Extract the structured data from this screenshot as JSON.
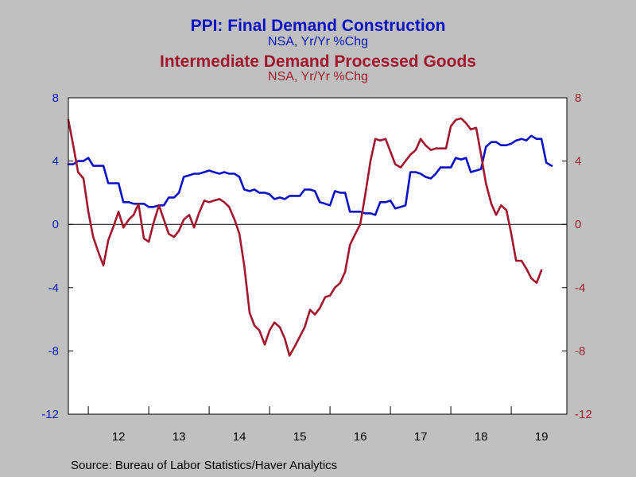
{
  "titles": {
    "title1": "PPI: Final Demand Construction",
    "subtitle1": "NSA, Yr/Yr %Chg",
    "title2": "Intermediate Demand Processed Goods",
    "subtitle2": "NSA, Yr/Yr %Chg"
  },
  "source": "Source:  Bureau of Labor Statistics/Haver Analytics",
  "colors": {
    "background": "#c0c0c0",
    "plot_background": "#ffffff",
    "series_construction": "#0b11c6",
    "series_processed_goods": "#a31630",
    "axis": "#000000"
  },
  "chart_data": {
    "type": "line",
    "x_unit": "year",
    "xlim": [
      2011.67,
      2019.92
    ],
    "x_tick_labels": [
      "12",
      "13",
      "14",
      "15",
      "16",
      "17",
      "18",
      "19"
    ],
    "left_axis": {
      "ylim": [
        -12,
        8
      ],
      "ticks": [
        8,
        4,
        0,
        -4,
        -8,
        -12
      ]
    },
    "right_axis": {
      "ylim": [
        -12,
        8
      ],
      "ticks": [
        8,
        4,
        0,
        -4,
        -8,
        -12
      ]
    },
    "zero_line": true,
    "grid": false,
    "series": [
      {
        "name": "PPI: Final Demand Construction",
        "axis": "left",
        "x": [
          2011.67,
          2011.75,
          2011.83,
          2011.92,
          2012.0,
          2012.08,
          2012.17,
          2012.25,
          2012.33,
          2012.42,
          2012.5,
          2012.58,
          2012.67,
          2012.75,
          2012.83,
          2012.92,
          2013.0,
          2013.08,
          2013.17,
          2013.25,
          2013.33,
          2013.42,
          2013.5,
          2013.58,
          2013.67,
          2013.75,
          2013.83,
          2013.92,
          2014.0,
          2014.08,
          2014.17,
          2014.25,
          2014.33,
          2014.42,
          2014.5,
          2014.58,
          2014.67,
          2014.75,
          2014.83,
          2014.92,
          2015.0,
          2015.08,
          2015.17,
          2015.25,
          2015.33,
          2015.42,
          2015.5,
          2015.58,
          2015.67,
          2015.75,
          2015.83,
          2015.92,
          2016.0,
          2016.08,
          2016.17,
          2016.25,
          2016.33,
          2016.42,
          2016.5,
          2016.58,
          2016.67,
          2016.75,
          2016.83,
          2016.92,
          2017.0,
          2017.08,
          2017.17,
          2017.25,
          2017.33,
          2017.42,
          2017.5,
          2017.58,
          2017.67,
          2017.75,
          2017.83,
          2017.92,
          2018.0,
          2018.08,
          2018.17,
          2018.25,
          2018.33,
          2018.42,
          2018.5,
          2018.58,
          2018.67,
          2018.75,
          2018.83,
          2018.92,
          2019.0,
          2019.08,
          2019.17,
          2019.25,
          2019.33,
          2019.42,
          2019.5,
          2019.58,
          2019.67,
          2019.75,
          2019.83,
          2019.92
        ],
        "values": [
          3.8,
          3.8,
          4.0,
          4.0,
          4.2,
          3.7,
          3.7,
          3.7,
          2.6,
          2.6,
          2.6,
          1.4,
          1.4,
          1.3,
          1.3,
          1.3,
          1.1,
          1.1,
          1.2,
          1.2,
          1.7,
          1.7,
          2.0,
          3.0,
          3.1,
          3.2,
          3.2,
          3.3,
          3.4,
          3.3,
          3.2,
          3.3,
          3.2,
          3.2,
          3.0,
          2.2,
          2.1,
          2.2,
          2.0,
          2.0,
          1.9,
          1.6,
          1.7,
          1.6,
          1.8,
          1.8,
          1.8,
          2.2,
          2.2,
          2.1,
          1.4,
          1.3,
          1.2,
          2.1,
          2.0,
          2.0,
          0.8,
          0.8,
          0.8,
          0.7,
          0.7,
          0.6,
          1.4,
          1.4,
          1.5,
          1.0,
          1.1,
          1.2,
          3.3,
          3.3,
          3.2,
          3.0,
          2.9,
          3.2,
          3.6,
          3.6,
          3.6,
          4.2,
          4.1,
          4.2,
          3.3,
          3.4,
          3.5,
          4.9,
          5.2,
          5.2,
          5.0,
          5.0,
          5.1,
          5.3,
          5.4,
          5.3,
          5.6,
          5.4,
          5.4,
          3.9,
          3.7,
          null,
          null,
          null
        ]
      },
      {
        "name": "Intermediate Demand Processed Goods",
        "axis": "right",
        "x": [
          2011.67,
          2011.75,
          2011.83,
          2011.92,
          2012.0,
          2012.08,
          2012.17,
          2012.25,
          2012.33,
          2012.42,
          2012.5,
          2012.58,
          2012.67,
          2012.75,
          2012.83,
          2012.92,
          2013.0,
          2013.08,
          2013.17,
          2013.25,
          2013.33,
          2013.42,
          2013.5,
          2013.58,
          2013.67,
          2013.75,
          2013.83,
          2013.92,
          2014.0,
          2014.08,
          2014.17,
          2014.25,
          2014.33,
          2014.42,
          2014.5,
          2014.58,
          2014.67,
          2014.75,
          2014.83,
          2014.92,
          2015.0,
          2015.08,
          2015.17,
          2015.25,
          2015.33,
          2015.42,
          2015.5,
          2015.58,
          2015.67,
          2015.75,
          2015.83,
          2015.92,
          2016.0,
          2016.08,
          2016.17,
          2016.25,
          2016.33,
          2016.42,
          2016.5,
          2016.58,
          2016.67,
          2016.75,
          2016.83,
          2016.92,
          2017.0,
          2017.08,
          2017.17,
          2017.25,
          2017.33,
          2017.42,
          2017.5,
          2017.58,
          2017.67,
          2017.75,
          2017.83,
          2017.92,
          2018.0,
          2018.08,
          2018.17,
          2018.25,
          2018.33,
          2018.42,
          2018.5,
          2018.58,
          2018.67,
          2018.75,
          2018.83,
          2018.92,
          2019.0,
          2019.08,
          2019.17,
          2019.25,
          2019.33,
          2019.42,
          2019.5,
          2019.58,
          2019.67,
          2019.75,
          2019.83,
          2019.92
        ],
        "values": [
          6.6,
          5.0,
          3.3,
          2.9,
          0.8,
          -0.8,
          -1.8,
          -2.6,
          -1.0,
          -0.1,
          0.8,
          -0.2,
          0.3,
          0.6,
          1.3,
          -0.9,
          -1.1,
          0.1,
          1.2,
          0.3,
          -0.6,
          -0.8,
          -0.4,
          0.3,
          0.6,
          -0.2,
          0.7,
          1.5,
          1.4,
          1.5,
          1.6,
          1.4,
          1.1,
          0.3,
          -0.6,
          -2.6,
          -5.6,
          -6.4,
          -6.7,
          -7.6,
          -6.7,
          -6.2,
          -6.5,
          -7.2,
          -8.3,
          -7.7,
          -7.1,
          -6.5,
          -5.4,
          -5.7,
          -5.3,
          -4.6,
          -4.5,
          -4.0,
          -3.7,
          -3.0,
          -1.3,
          -0.6,
          0.0,
          1.8,
          4.0,
          5.4,
          5.3,
          5.4,
          4.6,
          3.8,
          3.6,
          4.0,
          4.4,
          4.7,
          5.4,
          5.0,
          4.7,
          4.8,
          4.8,
          4.8,
          6.2,
          6.6,
          6.7,
          6.4,
          6.0,
          6.1,
          4.4,
          2.6,
          1.3,
          0.6,
          1.2,
          0.9,
          -0.6,
          -2.3,
          -2.3,
          -2.8,
          -3.4,
          -3.7,
          -2.9,
          null,
          null,
          null,
          null,
          null
        ]
      }
    ]
  }
}
